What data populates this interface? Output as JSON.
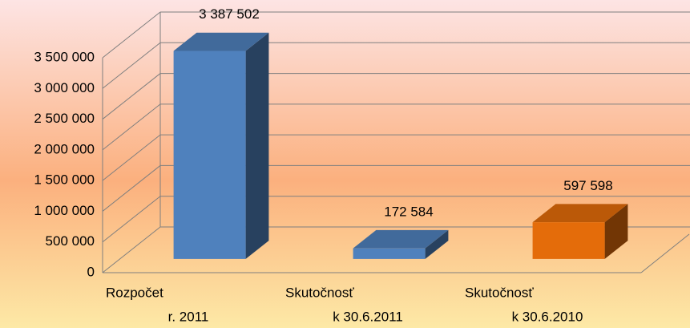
{
  "chart_data": {
    "type": "bar3d",
    "categories": [
      [
        "Rozpočet",
        "r. 2011"
      ],
      [
        "Skutočnosť",
        "k 30.6.2011"
      ],
      [
        "Skutočnosť",
        "k 30.6.2010"
      ]
    ],
    "values": [
      3387502,
      172584,
      597598
    ],
    "value_labels": [
      "3 387 502",
      "172 584",
      "597 598"
    ],
    "colors": [
      "#4f81bd",
      "#4f81bd",
      "#e46c0a"
    ],
    "ylim": [
      0,
      3500000
    ],
    "yticks": [
      0,
      {
        "value": 500000,
        "label": "500 000"
      },
      {
        "value": 1000000,
        "label": "1 000 000"
      },
      {
        "value": 1500000,
        "label": "1 500 000"
      },
      {
        "value": 2000000,
        "label": "2 000 000"
      },
      {
        "value": 2500000,
        "label": "2 500 000"
      },
      {
        "value": 3000000,
        "label": "3 000 000"
      },
      {
        "value": 3500000,
        "label": "3 500 000"
      }
    ],
    "grid": true
  }
}
